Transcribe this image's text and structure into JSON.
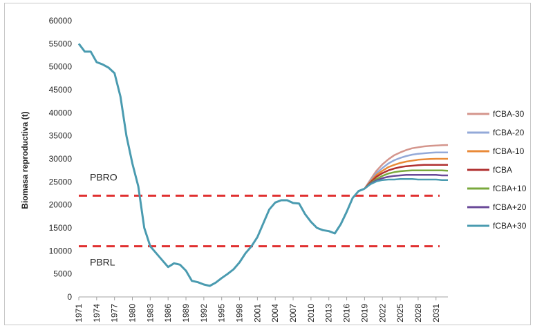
{
  "chart_data": {
    "type": "line",
    "ylabel": "Biomasa reproductiva (t)",
    "ylim": [
      0,
      60000
    ],
    "yticks": [
      0,
      5000,
      10000,
      15000,
      20000,
      25000,
      30000,
      35000,
      40000,
      45000,
      50000,
      55000,
      60000
    ],
    "xlim": [
      1971,
      2033
    ],
    "xticks": [
      1971,
      1974,
      1977,
      1980,
      1983,
      1986,
      1989,
      1992,
      1995,
      1998,
      2001,
      2004,
      2007,
      2010,
      2013,
      2016,
      2019,
      2022,
      2025,
      2028,
      2031
    ],
    "legend_position": "right",
    "reference_lines": [
      {
        "label": "PBRO",
        "value": 22000,
        "color": "#e03030"
      },
      {
        "label": "PBRL",
        "value": 11000,
        "color": "#e03030"
      }
    ],
    "historical": {
      "color": "#4a9bb0",
      "x": [
        1971,
        1972,
        1973,
        1974,
        1975,
        1976,
        1977,
        1978,
        1979,
        1980,
        1981,
        1982,
        1983,
        1984,
        1985,
        1986,
        1987,
        1988,
        1989,
        1990,
        1991,
        1992,
        1993,
        1994,
        1995,
        1996,
        1997,
        1998,
        1999,
        2000,
        2001,
        2002,
        2003,
        2004,
        2005,
        2006,
        2007,
        2008,
        2009,
        2010,
        2011,
        2012,
        2013,
        2014,
        2015,
        2016,
        2017,
        2018,
        2019
      ],
      "y": [
        55000,
        53300,
        53300,
        51000,
        50500,
        49800,
        48600,
        43500,
        35000,
        29000,
        24000,
        15000,
        11000,
        9500,
        8000,
        6500,
        7300,
        7000,
        5700,
        3500,
        3200,
        2700,
        2400,
        3100,
        4100,
        5000,
        6000,
        7500,
        9500,
        11000,
        13000,
        16000,
        19000,
        20500,
        21000,
        21000,
        20400,
        20300,
        18000,
        16300,
        15000,
        14500,
        14300,
        13800,
        15800,
        18500,
        21500,
        23000,
        23500
      ]
    },
    "series": [
      {
        "name": "fCBA-30",
        "color": "#d4958c",
        "x": [
          2019,
          2020,
          2021,
          2022,
          2023,
          2024,
          2025,
          2026,
          2027,
          2028,
          2029,
          2030,
          2031,
          2032,
          2033
        ],
        "y": [
          23500,
          25500,
          27400,
          28800,
          29900,
          30800,
          31400,
          31900,
          32300,
          32500,
          32700,
          32800,
          32900,
          32950,
          33000
        ]
      },
      {
        "name": "fCBA-20",
        "color": "#93a9d8",
        "x": [
          2019,
          2020,
          2021,
          2022,
          2023,
          2024,
          2025,
          2026,
          2027,
          2028,
          2029,
          2030,
          2031,
          2032,
          2033
        ],
        "y": [
          23500,
          25300,
          26900,
          28000,
          29000,
          29700,
          30200,
          30600,
          30900,
          31100,
          31200,
          31300,
          31400,
          31400,
          31400
        ]
      },
      {
        "name": "fCBA-10",
        "color": "#e98a38",
        "x": [
          2019,
          2020,
          2021,
          2022,
          2023,
          2024,
          2025,
          2026,
          2027,
          2028,
          2029,
          2030,
          2031,
          2032,
          2033
        ],
        "y": [
          23500,
          25100,
          26500,
          27400,
          28200,
          28700,
          29100,
          29400,
          29600,
          29800,
          29900,
          29950,
          30000,
          30000,
          30000
        ]
      },
      {
        "name": "fCBA",
        "color": "#b03030",
        "x": [
          2019,
          2020,
          2021,
          2022,
          2023,
          2024,
          2025,
          2026,
          2027,
          2028,
          2029,
          2030,
          2031,
          2032,
          2033
        ],
        "y": [
          23500,
          24900,
          26100,
          26900,
          27500,
          27900,
          28200,
          28400,
          28500,
          28600,
          28700,
          28700,
          28700,
          28700,
          28700
        ]
      },
      {
        "name": "fCBA+10",
        "color": "#7aa83c",
        "x": [
          2019,
          2020,
          2021,
          2022,
          2023,
          2024,
          2025,
          2026,
          2027,
          2028,
          2029,
          2030,
          2031,
          2032,
          2033
        ],
        "y": [
          23500,
          24700,
          25600,
          26300,
          26800,
          27100,
          27300,
          27400,
          27500,
          27500,
          27500,
          27500,
          27500,
          27500,
          27400
        ]
      },
      {
        "name": "fCBA+20",
        "color": "#6a4a98",
        "x": [
          2019,
          2020,
          2021,
          2022,
          2023,
          2024,
          2025,
          2026,
          2027,
          2028,
          2029,
          2030,
          2031,
          2032,
          2033
        ],
        "y": [
          23500,
          24600,
          25300,
          25800,
          26100,
          26300,
          26400,
          26500,
          26500,
          26500,
          26500,
          26500,
          26500,
          26400,
          26400
        ]
      },
      {
        "name": "fCBA+30",
        "color": "#4a9bb0",
        "x": [
          2019,
          2020,
          2021,
          2022,
          2023,
          2024,
          2025,
          2026,
          2027,
          2028,
          2029,
          2030,
          2031,
          2032,
          2033
        ],
        "y": [
          23500,
          24500,
          25100,
          25400,
          25500,
          25500,
          25600,
          25600,
          25600,
          25500,
          25500,
          25500,
          25500,
          25400,
          25400
        ]
      }
    ]
  }
}
